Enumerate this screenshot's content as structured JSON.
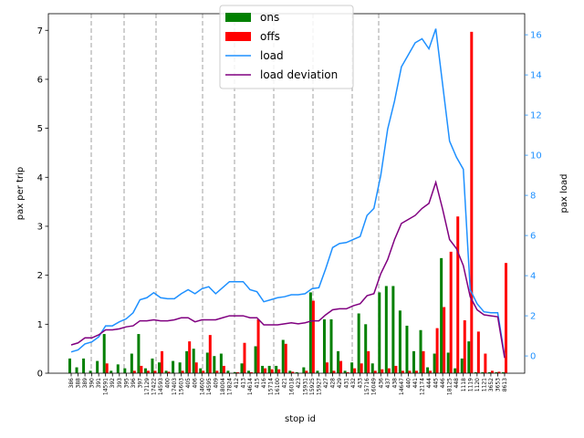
{
  "chart_data": {
    "type": "combo",
    "xlabel": "stop id",
    "ylabel": "pax per trip",
    "y2label": "pax load",
    "y2color": "#1e90ff",
    "legend": "upper center",
    "categories": [
      "386",
      "388",
      "389",
      "390",
      "391",
      "14591",
      "392",
      "393",
      "395",
      "396",
      "397",
      "17129",
      "17422",
      "14593",
      "400",
      "17403",
      "15603",
      "405",
      "406",
      "14600",
      "14595",
      "409",
      "18004",
      "17824",
      "412",
      "413",
      "14614",
      "415",
      "416",
      "15714",
      "16100",
      "421",
      "16018",
      "423",
      "15931",
      "15925",
      "15927",
      "427",
      "428",
      "429",
      "431",
      "432",
      "433",
      "15716",
      "16049",
      "436",
      "437",
      "438",
      "14647",
      "440",
      "441",
      "12174",
      "444",
      "445",
      "446",
      "18125",
      "448",
      "1118",
      "1119",
      "1120",
      "1121",
      "3652",
      "3653",
      "8613"
    ],
    "series": [
      {
        "name": "ons",
        "type": "bar",
        "color": "#008000",
        "values": [
          0.3,
          0.12,
          0.3,
          0.05,
          0.25,
          0.8,
          0.05,
          0.18,
          0.1,
          0.4,
          0.8,
          0.1,
          0.3,
          0.22,
          0.05,
          0.25,
          0.22,
          0.45,
          0.5,
          0.1,
          0.42,
          0.35,
          0.4,
          0.05,
          0.02,
          0.2,
          0.05,
          0.55,
          0.15,
          0.15,
          0.15,
          0.68,
          0.05,
          0.02,
          0.12,
          1.65,
          0.05,
          1.1,
          1.1,
          0.45,
          0.05,
          0.22,
          1.22,
          1.0,
          0.2,
          1.65,
          1.78,
          1.78,
          1.28,
          0.97,
          0.45,
          0.88,
          0.12,
          0.4,
          2.35,
          0.42,
          0.1,
          0.3,
          0.65,
          0.02,
          0.02,
          0.02,
          0.02,
          0.02
        ]
      },
      {
        "name": "offs",
        "type": "bar",
        "color": "#ff0000",
        "values": [
          0,
          0,
          0,
          0,
          0,
          0.2,
          0,
          0,
          0,
          0.05,
          0.15,
          0.05,
          0.05,
          0.45,
          0.03,
          0,
          0.05,
          0.65,
          0.22,
          0.05,
          0.78,
          0.05,
          0.15,
          0,
          0.02,
          0.62,
          0.02,
          1.1,
          0.1,
          0.08,
          0.08,
          0.6,
          0.03,
          0,
          0.05,
          1.48,
          0,
          0.22,
          0.05,
          0.25,
          0.02,
          0.1,
          0.2,
          0.45,
          0.05,
          0.08,
          0.1,
          0.15,
          0.05,
          0.05,
          0.05,
          0.45,
          0.05,
          0.92,
          1.35,
          2.48,
          3.2,
          1.08,
          6.97,
          0.85,
          0.4,
          0.05,
          0.03,
          2.25
        ]
      },
      {
        "name": "load",
        "type": "line",
        "axis": "y2",
        "color": "#1e90ff",
        "values": [
          0.2,
          0.3,
          0.6,
          0.7,
          0.95,
          1.5,
          1.5,
          1.7,
          1.85,
          2.15,
          2.8,
          2.9,
          3.15,
          2.9,
          2.85,
          2.85,
          3.1,
          3.3,
          3.1,
          3.35,
          3.45,
          3.1,
          3.4,
          3.7,
          3.7,
          3.7,
          3.3,
          3.2,
          2.7,
          2.8,
          2.9,
          2.95,
          3.05,
          3.05,
          3.1,
          3.35,
          3.4,
          4.35,
          5.4,
          5.6,
          5.65,
          5.8,
          5.95,
          7.0,
          7.35,
          9.0,
          11.3,
          12.7,
          14.4,
          15.0,
          15.6,
          15.8,
          15.3,
          16.3,
          13.5,
          10.7,
          9.9,
          9.3,
          3.3,
          2.6,
          2.2,
          2.15,
          2.15,
          0
        ]
      },
      {
        "name": "load deviation",
        "type": "line",
        "axis": "y2",
        "color": "#800080",
        "values": [
          0.55,
          0.65,
          0.9,
          0.9,
          1.05,
          1.3,
          1.3,
          1.35,
          1.45,
          1.5,
          1.75,
          1.75,
          1.8,
          1.75,
          1.75,
          1.8,
          1.9,
          1.9,
          1.7,
          1.8,
          1.8,
          1.8,
          1.9,
          2.0,
          2.0,
          2.0,
          1.9,
          1.9,
          1.55,
          1.55,
          1.55,
          1.6,
          1.65,
          1.6,
          1.65,
          1.75,
          1.75,
          2.05,
          2.3,
          2.35,
          2.35,
          2.5,
          2.6,
          3.0,
          3.1,
          4.1,
          4.8,
          5.8,
          6.6,
          6.8,
          7.0,
          7.35,
          7.6,
          8.65,
          7.3,
          5.8,
          5.35,
          4.5,
          2.95,
          2.3,
          2.05,
          2.0,
          1.95,
          -0.1
        ]
      }
    ],
    "ylim": [
      0,
      7.34
    ],
    "yticks": [
      0,
      1,
      2,
      3,
      4,
      5,
      6,
      7
    ],
    "y2lim": [
      -0.86,
      17.05
    ],
    "y2ticks": [
      0,
      2,
      4,
      6,
      8,
      10,
      12,
      14,
      16
    ]
  }
}
